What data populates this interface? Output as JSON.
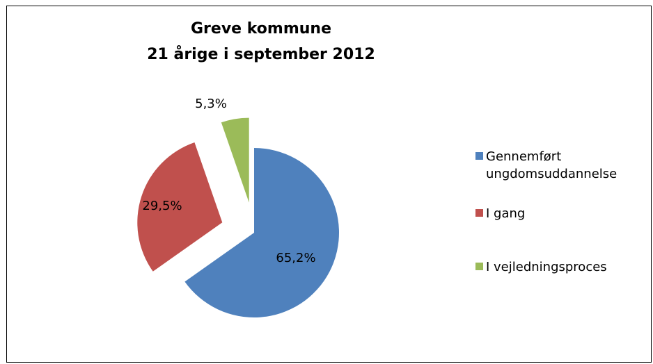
{
  "chart_data": {
    "type": "pie",
    "title": [
      "Greve kommune",
      "21 årige i september 2012"
    ],
    "categories": [
      "Gennemført ungdomsuddannelse",
      "I gang",
      "I vejledningsproces"
    ],
    "values": [
      65.2,
      29.5,
      5.3
    ],
    "value_labels": [
      "65,2%",
      "29,5%",
      "5,3%"
    ],
    "colors": [
      "#4f81bd",
      "#c0504d",
      "#9bbb59"
    ],
    "legend": "right"
  }
}
